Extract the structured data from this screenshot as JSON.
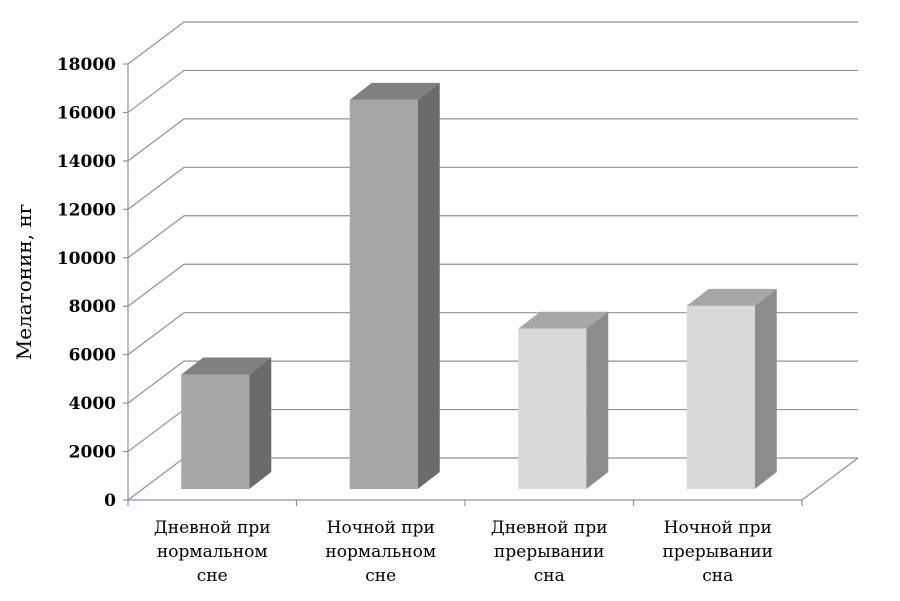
{
  "chart_data": {
    "type": "bar",
    "title": "",
    "xlabel": "",
    "ylabel": "Мелатонин, нг",
    "ylim": [
      0,
      18000
    ],
    "yticks": [
      "0",
      "2000",
      "4000",
      "6000",
      "8000",
      "10000",
      "12000",
      "14000",
      "16000",
      "18000"
    ],
    "grid": true,
    "three_d": true,
    "categories": [
      [
        "Дневной при",
        "нормальном",
        "сне"
      ],
      [
        "Ночной при",
        "нормальном",
        "сне"
      ],
      [
        "Дневной при",
        "прерывании",
        "сна"
      ],
      [
        "Ночной при",
        "прерывании",
        "сна"
      ]
    ],
    "values": [
      5000,
      17000,
      7000,
      8000
    ],
    "bar_colors": [
      {
        "front": "#a6a6a6",
        "side": "#6b6b6b",
        "top": "#808080"
      },
      {
        "front": "#a6a6a6",
        "side": "#6b6b6b",
        "top": "#808080"
      },
      {
        "front": "#d9d9d9",
        "side": "#8c8c8c",
        "top": "#a6a6a6"
      },
      {
        "front": "#d9d9d9",
        "side": "#8c8c8c",
        "top": "#a6a6a6"
      }
    ],
    "gridline_color": "#8a949e"
  }
}
